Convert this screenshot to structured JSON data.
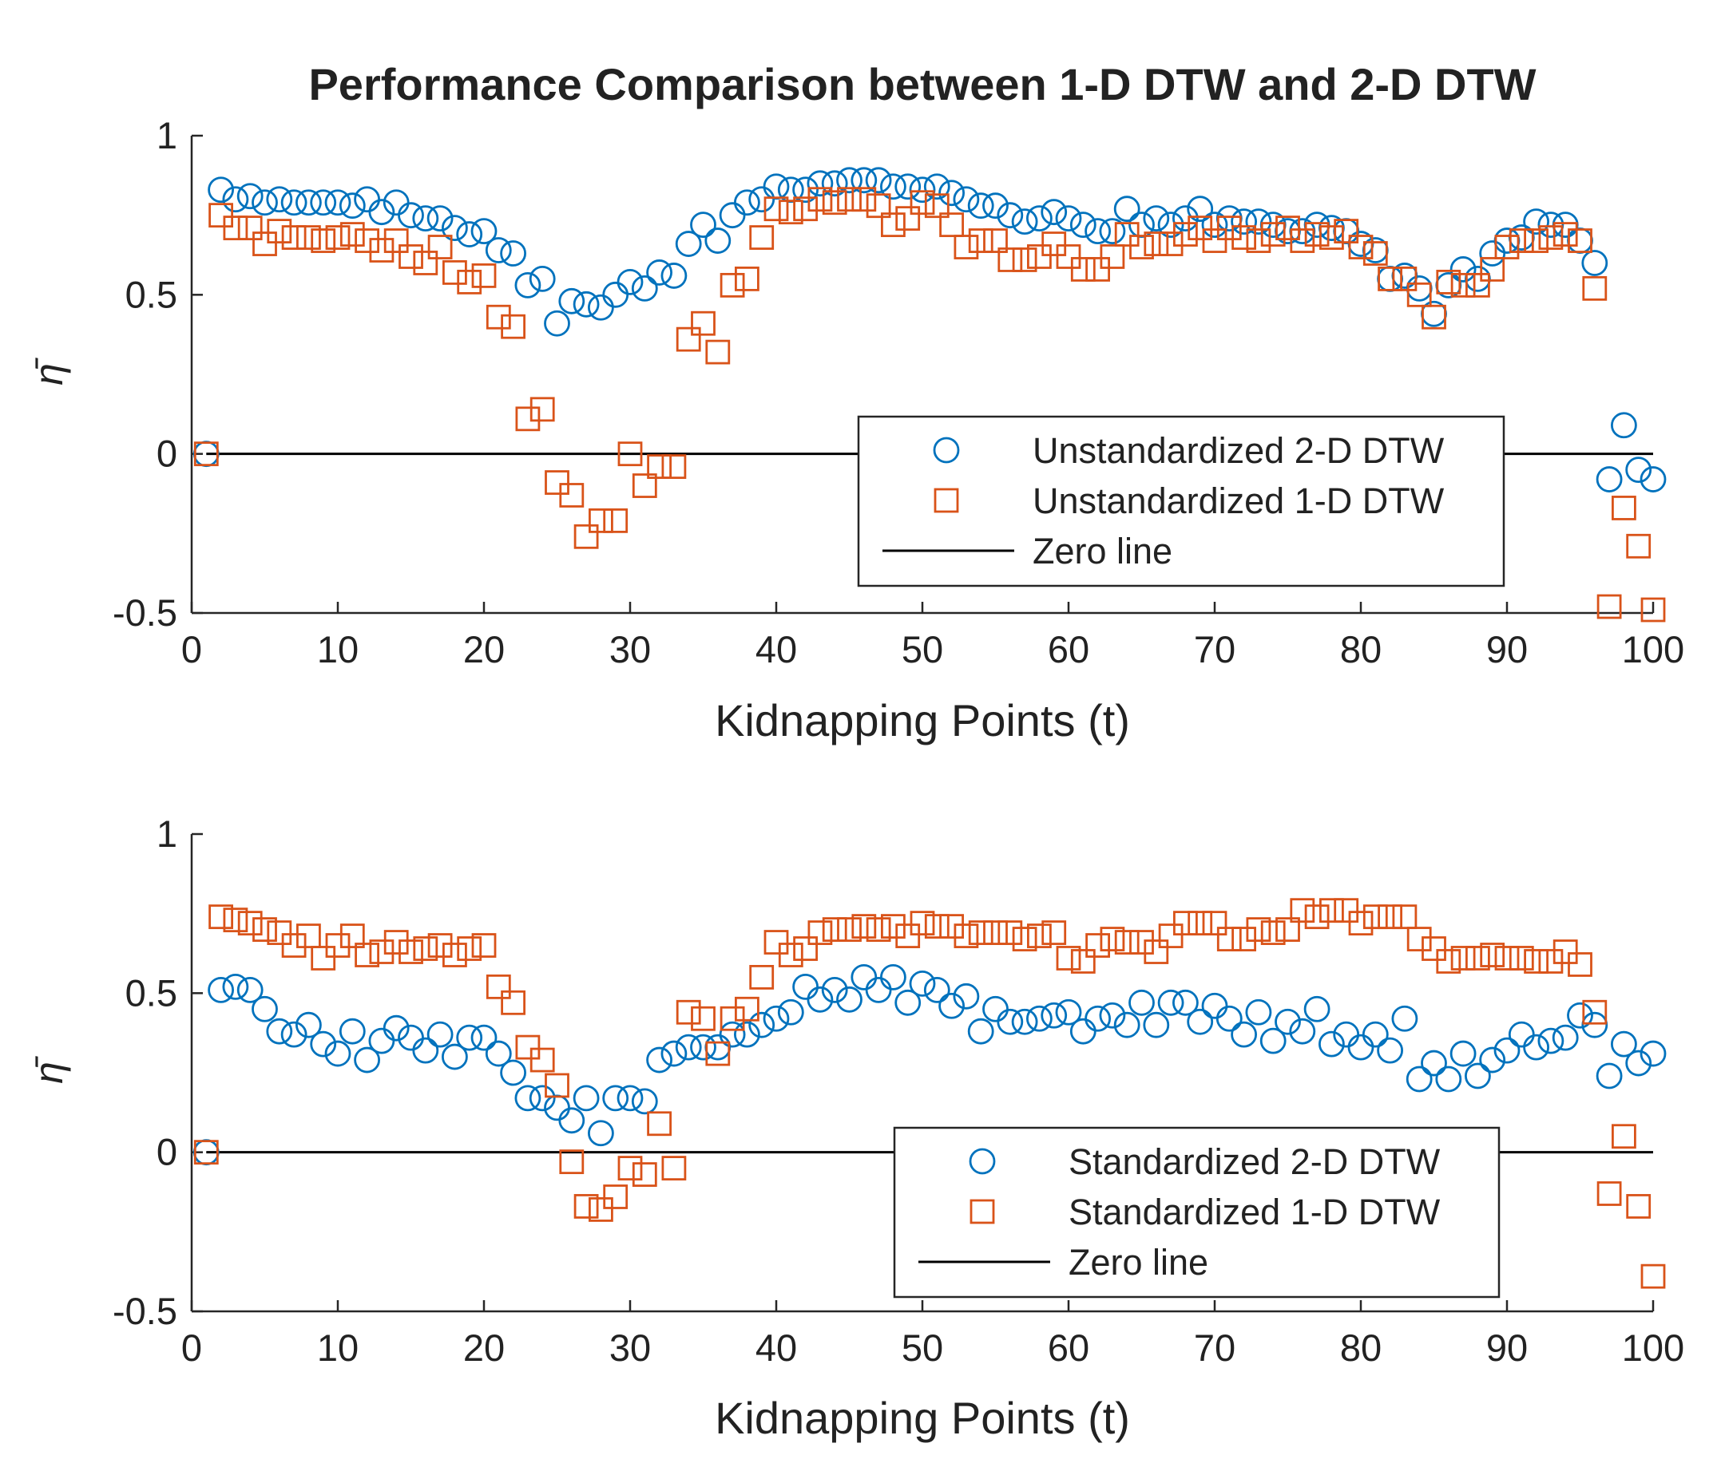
{
  "chart_data": [
    {
      "type": "scatter",
      "title": "Performance Comparison between 1-D DTW and 2-D DTW",
      "xlabel": "Kidnapping Points (t)",
      "ylabel": "η̄",
      "xlim": [
        0,
        100
      ],
      "ylim": [
        -0.5,
        1
      ],
      "xticks": [
        "0",
        "10",
        "20",
        "30",
        "40",
        "50",
        "60",
        "70",
        "80",
        "90",
        "100"
      ],
      "yticks": [
        "-0.5",
        "0",
        "0.5",
        "1"
      ],
      "legend_position": "middle-right",
      "series": [
        {
          "name": "Unstandardized 2-D DTW",
          "marker": "circle",
          "color": "#0072BD",
          "x": [
            1,
            2,
            3,
            4,
            5,
            6,
            7,
            8,
            9,
            10,
            11,
            12,
            13,
            14,
            15,
            16,
            17,
            18,
            19,
            20,
            21,
            22,
            23,
            24,
            25,
            26,
            27,
            28,
            29,
            30,
            31,
            32,
            33,
            34,
            35,
            36,
            37,
            38,
            39,
            40,
            41,
            42,
            43,
            44,
            45,
            46,
            47,
            48,
            49,
            50,
            51,
            52,
            53,
            54,
            55,
            56,
            57,
            58,
            59,
            60,
            61,
            62,
            63,
            64,
            65,
            66,
            67,
            68,
            69,
            70,
            71,
            72,
            73,
            74,
            75,
            76,
            77,
            78,
            79,
            80,
            81,
            82,
            83,
            84,
            85,
            86,
            87,
            88,
            89,
            90,
            91,
            92,
            93,
            94,
            95,
            96,
            97,
            98,
            99,
            100
          ],
          "y": [
            0.0,
            0.83,
            0.8,
            0.81,
            0.79,
            0.8,
            0.79,
            0.79,
            0.79,
            0.79,
            0.78,
            0.8,
            0.76,
            0.79,
            0.75,
            0.74,
            0.74,
            0.71,
            0.69,
            0.7,
            0.64,
            0.63,
            0.53,
            0.55,
            0.41,
            0.48,
            0.47,
            0.46,
            0.5,
            0.54,
            0.52,
            0.57,
            0.56,
            0.66,
            0.72,
            0.67,
            0.75,
            0.79,
            0.8,
            0.84,
            0.83,
            0.83,
            0.85,
            0.85,
            0.86,
            0.86,
            0.86,
            0.84,
            0.84,
            0.83,
            0.84,
            0.82,
            0.8,
            0.78,
            0.78,
            0.75,
            0.73,
            0.74,
            0.76,
            0.74,
            0.72,
            0.7,
            0.7,
            0.77,
            0.72,
            0.74,
            0.72,
            0.74,
            0.77,
            0.72,
            0.74,
            0.73,
            0.73,
            0.72,
            0.7,
            0.7,
            0.72,
            0.71,
            0.7,
            0.66,
            0.64,
            0.55,
            0.56,
            0.52,
            0.44,
            0.53,
            0.58,
            0.55,
            0.63,
            0.67,
            0.68,
            0.73,
            0.72,
            0.72,
            0.67,
            0.6,
            -0.08,
            0.09,
            -0.05,
            -0.08
          ]
        },
        {
          "name": "Unstandardized 1-D DTW",
          "marker": "square",
          "color": "#D95319",
          "x": [
            1,
            2,
            3,
            4,
            5,
            6,
            7,
            8,
            9,
            10,
            11,
            12,
            13,
            14,
            15,
            16,
            17,
            18,
            19,
            20,
            21,
            22,
            23,
            24,
            25,
            26,
            27,
            28,
            29,
            30,
            31,
            32,
            33,
            34,
            35,
            36,
            37,
            38,
            39,
            40,
            41,
            42,
            43,
            44,
            45,
            46,
            47,
            48,
            49,
            50,
            51,
            52,
            53,
            54,
            55,
            56,
            57,
            58,
            59,
            60,
            61,
            62,
            63,
            64,
            65,
            66,
            67,
            68,
            69,
            70,
            71,
            72,
            73,
            74,
            75,
            76,
            77,
            78,
            79,
            80,
            81,
            82,
            83,
            84,
            85,
            86,
            87,
            88,
            89,
            90,
            91,
            92,
            93,
            94,
            95,
            96,
            97,
            98,
            99,
            100
          ],
          "y": [
            0.0,
            0.75,
            0.71,
            0.71,
            0.66,
            0.7,
            0.68,
            0.68,
            0.67,
            0.68,
            0.69,
            0.67,
            0.64,
            0.67,
            0.62,
            0.6,
            0.65,
            0.57,
            0.54,
            0.56,
            0.43,
            0.4,
            0.11,
            0.14,
            -0.09,
            -0.13,
            -0.26,
            -0.21,
            -0.21,
            0.0,
            -0.1,
            -0.04,
            -0.04,
            0.36,
            0.41,
            0.32,
            0.53,
            0.55,
            0.68,
            0.77,
            0.76,
            0.77,
            0.8,
            0.79,
            0.8,
            0.8,
            0.78,
            0.72,
            0.74,
            0.79,
            0.78,
            0.72,
            0.65,
            0.67,
            0.67,
            0.61,
            0.61,
            0.62,
            0.66,
            0.62,
            0.58,
            0.58,
            0.62,
            0.69,
            0.65,
            0.66,
            0.66,
            0.69,
            0.71,
            0.67,
            0.71,
            0.68,
            0.67,
            0.69,
            0.71,
            0.67,
            0.69,
            0.68,
            0.7,
            0.65,
            0.63,
            0.55,
            0.55,
            0.5,
            0.43,
            0.54,
            0.53,
            0.53,
            0.58,
            0.65,
            0.67,
            0.67,
            0.68,
            0.69,
            0.67,
            0.52,
            -0.48,
            -0.17,
            -0.29,
            -0.49
          ]
        },
        {
          "name": "Zero line",
          "type": "line",
          "color": "#000000",
          "x": [
            1,
            100
          ],
          "y": [
            0,
            0
          ]
        }
      ]
    },
    {
      "type": "scatter",
      "title": "",
      "xlabel": "Kidnapping Points (t)",
      "ylabel": "η̄",
      "xlim": [
        0,
        100
      ],
      "ylim": [
        -0.5,
        1
      ],
      "xticks": [
        "0",
        "10",
        "20",
        "30",
        "40",
        "50",
        "60",
        "70",
        "80",
        "90",
        "100"
      ],
      "yticks": [
        "-0.5",
        "0",
        "0.5",
        "1"
      ],
      "legend_position": "lower-right",
      "series": [
        {
          "name": "Standardized 2-D DTW",
          "marker": "circle",
          "color": "#0072BD",
          "x": [
            1,
            2,
            3,
            4,
            5,
            6,
            7,
            8,
            9,
            10,
            11,
            12,
            13,
            14,
            15,
            16,
            17,
            18,
            19,
            20,
            21,
            22,
            23,
            24,
            25,
            26,
            27,
            28,
            29,
            30,
            31,
            32,
            33,
            34,
            35,
            36,
            37,
            38,
            39,
            40,
            41,
            42,
            43,
            44,
            45,
            46,
            47,
            48,
            49,
            50,
            51,
            52,
            53,
            54,
            55,
            56,
            57,
            58,
            59,
            60,
            61,
            62,
            63,
            64,
            65,
            66,
            67,
            68,
            69,
            70,
            71,
            72,
            73,
            74,
            75,
            76,
            77,
            78,
            79,
            80,
            81,
            82,
            83,
            84,
            85,
            86,
            87,
            88,
            89,
            90,
            91,
            92,
            93,
            94,
            95,
            96,
            97,
            98,
            99,
            100
          ],
          "y": [
            0.0,
            0.51,
            0.52,
            0.51,
            0.45,
            0.38,
            0.37,
            0.4,
            0.34,
            0.31,
            0.38,
            0.29,
            0.35,
            0.39,
            0.36,
            0.32,
            0.37,
            0.3,
            0.36,
            0.36,
            0.31,
            0.25,
            0.17,
            0.17,
            0.14,
            0.1,
            0.17,
            0.06,
            0.17,
            0.17,
            0.16,
            0.29,
            0.31,
            0.33,
            0.33,
            0.33,
            0.37,
            0.37,
            0.4,
            0.42,
            0.44,
            0.52,
            0.48,
            0.51,
            0.48,
            0.55,
            0.51,
            0.55,
            0.47,
            0.53,
            0.51,
            0.46,
            0.49,
            0.38,
            0.45,
            0.41,
            0.41,
            0.42,
            0.43,
            0.44,
            0.38,
            0.42,
            0.43,
            0.4,
            0.47,
            0.4,
            0.47,
            0.47,
            0.41,
            0.46,
            0.42,
            0.37,
            0.44,
            0.35,
            0.41,
            0.38,
            0.45,
            0.34,
            0.37,
            0.33,
            0.37,
            0.32,
            0.42,
            0.23,
            0.28,
            0.23,
            0.31,
            0.24,
            0.29,
            0.32,
            0.37,
            0.33,
            0.35,
            0.36,
            0.43,
            0.4,
            0.24,
            0.34,
            0.28,
            0.31
          ]
        },
        {
          "name": "Standardized 1-D DTW",
          "marker": "square",
          "color": "#D95319",
          "x": [
            1,
            2,
            3,
            4,
            5,
            6,
            7,
            8,
            9,
            10,
            11,
            12,
            13,
            14,
            15,
            16,
            17,
            18,
            19,
            20,
            21,
            22,
            23,
            24,
            25,
            26,
            27,
            28,
            29,
            30,
            31,
            32,
            33,
            34,
            35,
            36,
            37,
            38,
            39,
            40,
            41,
            42,
            43,
            44,
            45,
            46,
            47,
            48,
            49,
            50,
            51,
            52,
            53,
            54,
            55,
            56,
            57,
            58,
            59,
            60,
            61,
            62,
            63,
            64,
            65,
            66,
            67,
            68,
            69,
            70,
            71,
            72,
            73,
            74,
            75,
            76,
            77,
            78,
            79,
            80,
            81,
            82,
            83,
            84,
            85,
            86,
            87,
            88,
            89,
            90,
            91,
            92,
            93,
            94,
            95,
            96,
            97,
            98,
            99,
            100
          ],
          "y": [
            0.0,
            0.74,
            0.73,
            0.72,
            0.7,
            0.69,
            0.65,
            0.68,
            0.61,
            0.65,
            0.68,
            0.62,
            0.63,
            0.66,
            0.63,
            0.64,
            0.65,
            0.62,
            0.64,
            0.65,
            0.52,
            0.47,
            0.33,
            0.29,
            0.21,
            -0.03,
            -0.17,
            -0.18,
            -0.14,
            -0.05,
            -0.07,
            0.09,
            -0.05,
            0.44,
            0.42,
            0.31,
            0.42,
            0.45,
            0.55,
            0.66,
            0.62,
            0.64,
            0.69,
            0.7,
            0.7,
            0.71,
            0.7,
            0.71,
            0.68,
            0.72,
            0.71,
            0.71,
            0.68,
            0.69,
            0.69,
            0.69,
            0.67,
            0.68,
            0.69,
            0.61,
            0.6,
            0.65,
            0.67,
            0.66,
            0.66,
            0.63,
            0.68,
            0.72,
            0.72,
            0.72,
            0.67,
            0.67,
            0.7,
            0.69,
            0.7,
            0.76,
            0.74,
            0.76,
            0.76,
            0.72,
            0.74,
            0.74,
            0.74,
            0.67,
            0.64,
            0.6,
            0.61,
            0.61,
            0.62,
            0.61,
            0.61,
            0.6,
            0.6,
            0.63,
            0.59,
            0.44,
            -0.13,
            0.05,
            -0.17,
            -0.39
          ]
        },
        {
          "name": "Zero line",
          "type": "line",
          "color": "#000000",
          "x": [
            1,
            100
          ],
          "y": [
            0,
            0
          ]
        }
      ]
    }
  ]
}
